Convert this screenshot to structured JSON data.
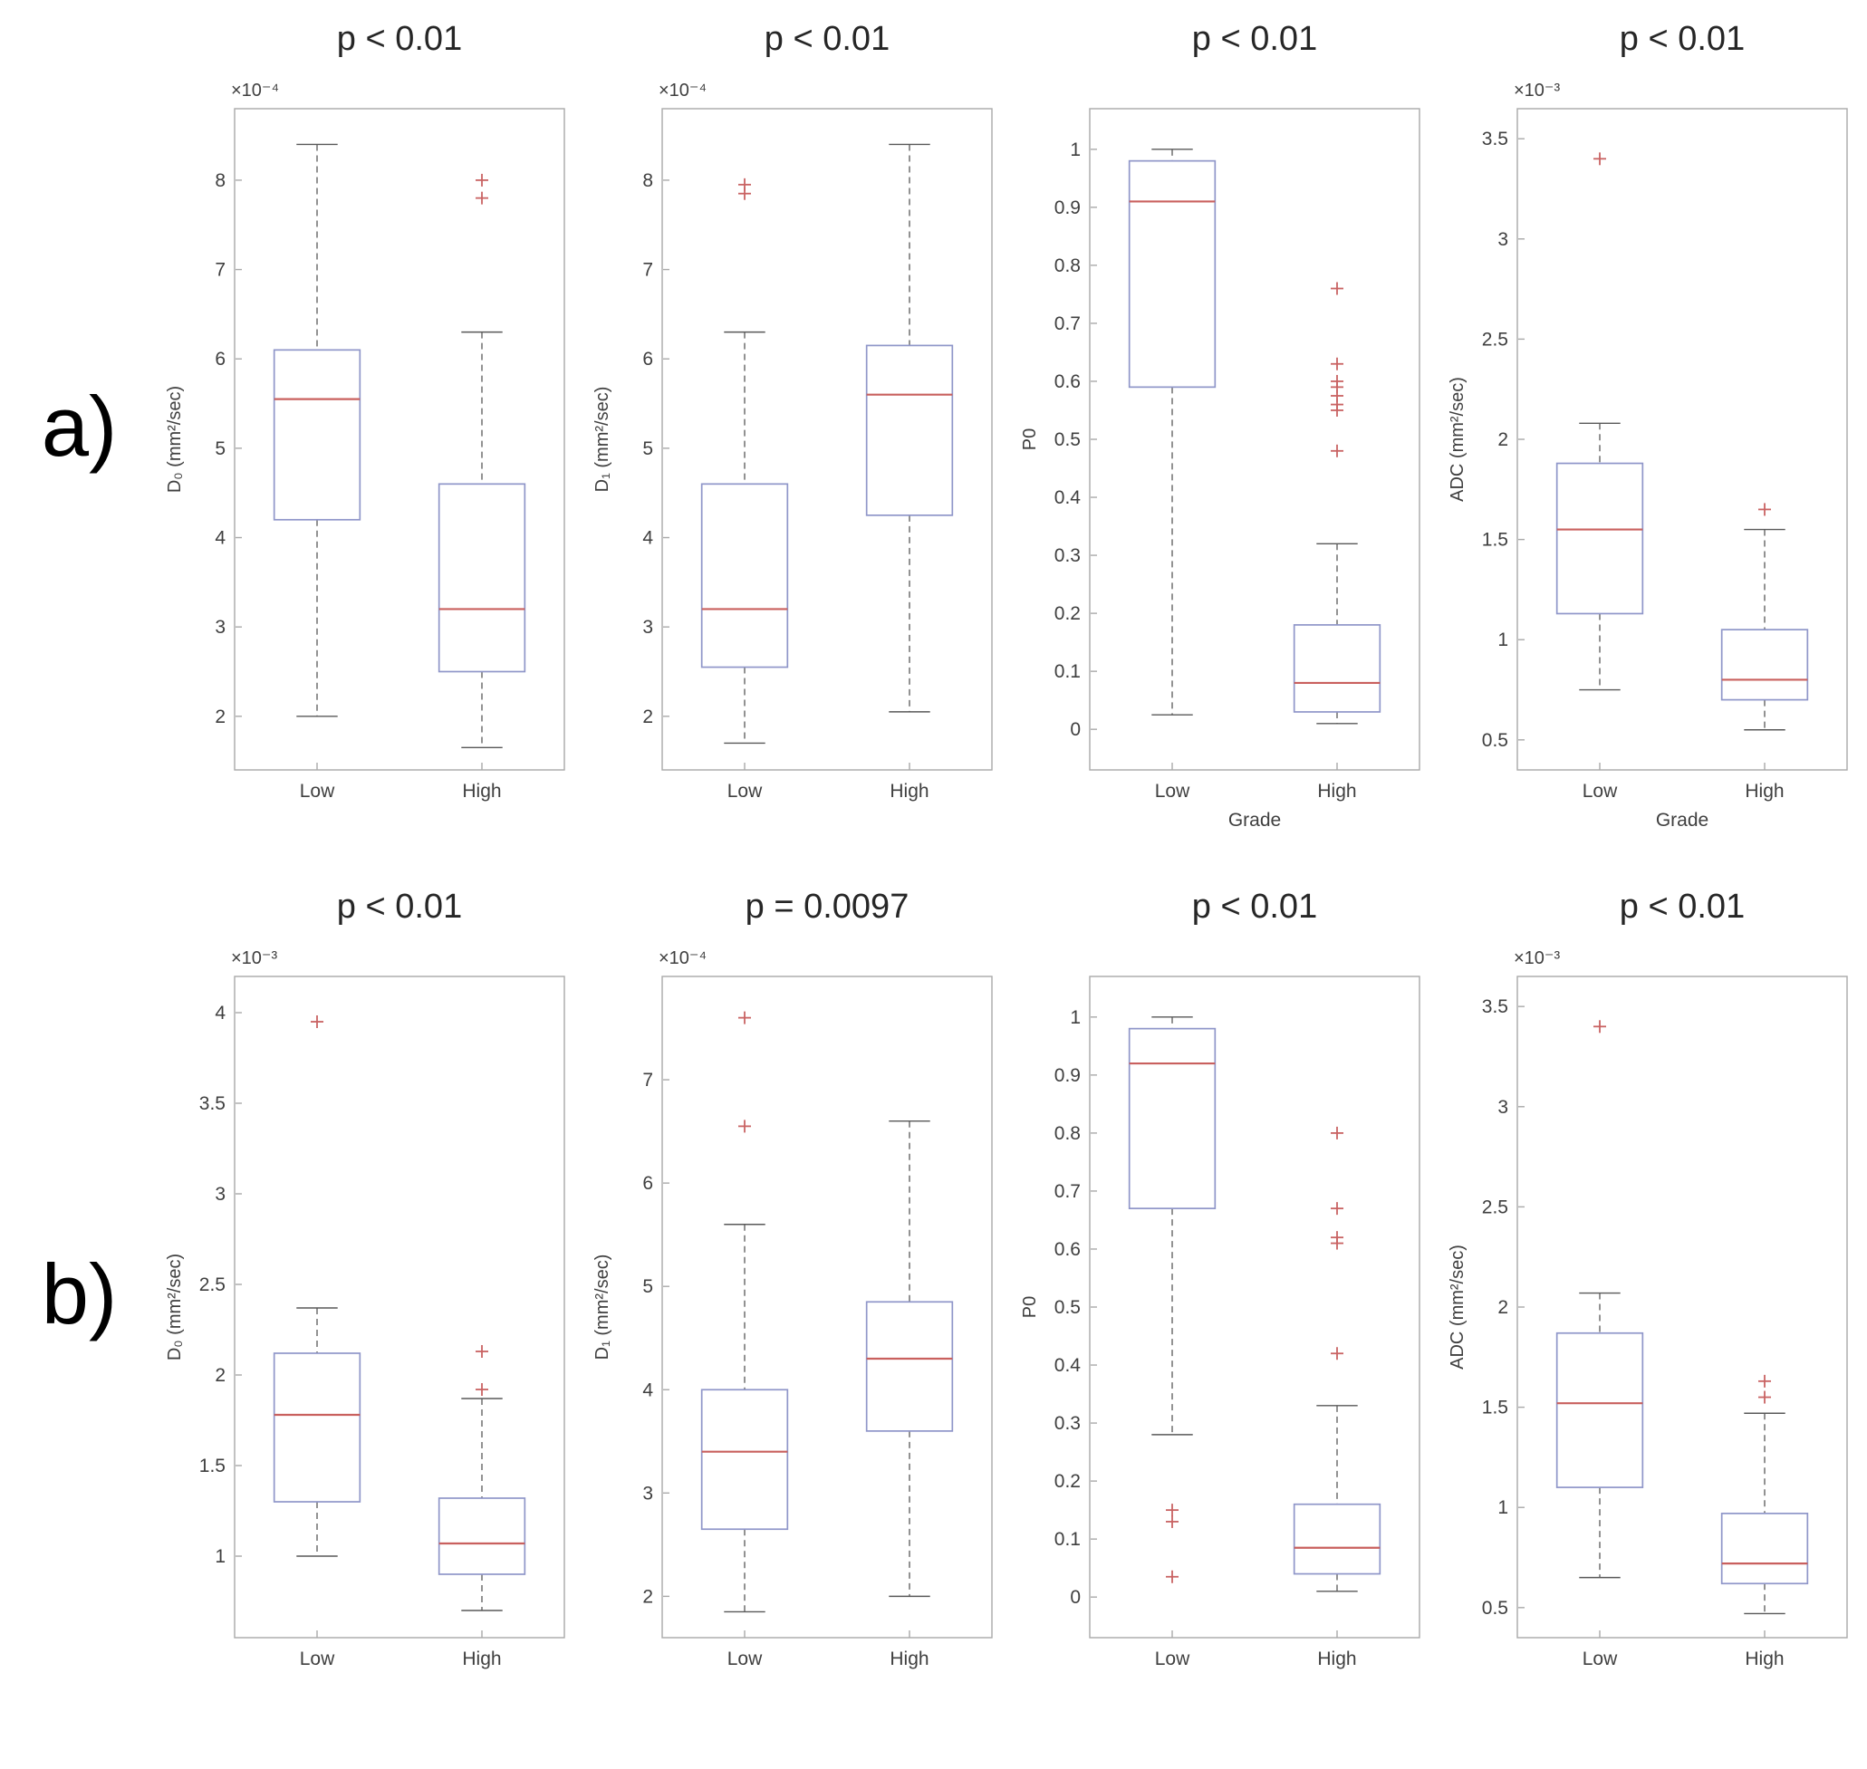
{
  "colors": {
    "box": "#8f96c9",
    "median": "#c9605e",
    "whisker": "#585858",
    "outlier": "#c96363",
    "axis_frame": "#a9a9a9",
    "tick_text": "#3f3f3f",
    "title_text": "#262626"
  },
  "chart_data": {
    "type": "box",
    "rows": [
      {
        "row_label": "a)",
        "charts": [
          {
            "title": "p < 0.01",
            "exponent": "×10⁻⁴",
            "ylabel": "D₀ (mm²/sec)",
            "xlabel": "",
            "ylim": [
              1.4,
              8.8
            ],
            "yticks": [
              2,
              3,
              4,
              5,
              6,
              7,
              8
            ],
            "categories": [
              "Low",
              "High"
            ],
            "groups": [
              {
                "label": "Low",
                "whislo": 2.0,
                "q1": 4.2,
                "med": 5.55,
                "q3": 6.1,
                "whishi": 8.4,
                "outliers": []
              },
              {
                "label": "High",
                "whislo": 1.65,
                "q1": 2.5,
                "med": 3.2,
                "q3": 4.6,
                "whishi": 6.3,
                "outliers": [
                  7.8,
                  8.0
                ]
              }
            ]
          },
          {
            "title": "p < 0.01",
            "exponent": "×10⁻⁴",
            "ylabel": "D₁ (mm²/sec)",
            "xlabel": "",
            "ylim": [
              1.4,
              8.8
            ],
            "yticks": [
              2,
              3,
              4,
              5,
              6,
              7,
              8
            ],
            "categories": [
              "Low",
              "High"
            ],
            "groups": [
              {
                "label": "Low",
                "whislo": 1.7,
                "q1": 2.55,
                "med": 3.2,
                "q3": 4.6,
                "whishi": 6.3,
                "outliers": [
                  7.85,
                  7.95
                ]
              },
              {
                "label": "High",
                "whislo": 2.05,
                "q1": 4.25,
                "med": 5.6,
                "q3": 6.15,
                "whishi": 8.4,
                "outliers": []
              }
            ]
          },
          {
            "title": "p < 0.01",
            "exponent": "",
            "ylabel": "P0",
            "xlabel": "Grade",
            "ylim": [
              -0.07,
              1.07
            ],
            "yticks": [
              0,
              0.1,
              0.2,
              0.3,
              0.4,
              0.5,
              0.6,
              0.7,
              0.8,
              0.9,
              1
            ],
            "categories": [
              "Low",
              "High"
            ],
            "groups": [
              {
                "label": "Low",
                "whislo": 0.025,
                "q1": 0.59,
                "med": 0.91,
                "q3": 0.98,
                "whishi": 1.0,
                "outliers": []
              },
              {
                "label": "High",
                "whislo": 0.01,
                "q1": 0.03,
                "med": 0.08,
                "q3": 0.18,
                "whishi": 0.32,
                "outliers": [
                  0.48,
                  0.55,
                  0.56,
                  0.575,
                  0.59,
                  0.6,
                  0.63,
                  0.76
                ]
              }
            ]
          },
          {
            "title": "p < 0.01",
            "exponent": "×10⁻³",
            "ylabel": "ADC (mm²/sec)",
            "xlabel": "Grade",
            "ylim": [
              0.35,
              3.65
            ],
            "yticks": [
              0.5,
              1,
              1.5,
              2,
              2.5,
              3,
              3.5
            ],
            "categories": [
              "Low",
              "High"
            ],
            "groups": [
              {
                "label": "Low",
                "whislo": 0.75,
                "q1": 1.13,
                "med": 1.55,
                "q3": 1.88,
                "whishi": 2.08,
                "outliers": [
                  3.4
                ]
              },
              {
                "label": "High",
                "whislo": 0.55,
                "q1": 0.7,
                "med": 0.8,
                "q3": 1.05,
                "whishi": 1.55,
                "outliers": [
                  1.65
                ]
              }
            ]
          }
        ]
      },
      {
        "row_label": "b)",
        "charts": [
          {
            "title": "p < 0.01",
            "exponent": "×10⁻³",
            "ylabel": "D₀ (mm²/sec)",
            "xlabel": "",
            "ylim": [
              0.55,
              4.2
            ],
            "yticks": [
              1,
              1.5,
              2,
              2.5,
              3,
              3.5,
              4
            ],
            "categories": [
              "Low",
              "High"
            ],
            "groups": [
              {
                "label": "Low",
                "whislo": 1.0,
                "q1": 1.3,
                "med": 1.78,
                "q3": 2.12,
                "whishi": 2.37,
                "outliers": [
                  3.95
                ]
              },
              {
                "label": "High",
                "whislo": 0.7,
                "q1": 0.9,
                "med": 1.07,
                "q3": 1.32,
                "whishi": 1.87,
                "outliers": [
                  1.92,
                  2.13
                ]
              }
            ]
          },
          {
            "title": "p = 0.0097",
            "exponent": "×10⁻⁴",
            "ylabel": "D₁ (mm²/sec)",
            "xlabel": "",
            "ylim": [
              1.6,
              8.0
            ],
            "yticks": [
              2,
              3,
              4,
              5,
              6,
              7
            ],
            "categories": [
              "Low",
              "High"
            ],
            "groups": [
              {
                "label": "Low",
                "whislo": 1.85,
                "q1": 2.65,
                "med": 3.4,
                "q3": 4.0,
                "whishi": 5.6,
                "outliers": [
                  6.55,
                  7.6
                ]
              },
              {
                "label": "High",
                "whislo": 2.0,
                "q1": 3.6,
                "med": 4.3,
                "q3": 4.85,
                "whishi": 6.6,
                "outliers": []
              }
            ]
          },
          {
            "title": "p < 0.01",
            "exponent": "",
            "ylabel": "P0",
            "xlabel": "",
            "ylim": [
              -0.07,
              1.07
            ],
            "yticks": [
              0,
              0.1,
              0.2,
              0.3,
              0.4,
              0.5,
              0.6,
              0.7,
              0.8,
              0.9,
              1
            ],
            "categories": [
              "Low",
              "High"
            ],
            "groups": [
              {
                "label": "Low",
                "whislo": 0.28,
                "q1": 0.67,
                "med": 0.92,
                "q3": 0.98,
                "whishi": 1.0,
                "outliers": [
                  0.035,
                  0.13,
                  0.15
                ]
              },
              {
                "label": "High",
                "whislo": 0.01,
                "q1": 0.04,
                "med": 0.085,
                "q3": 0.16,
                "whishi": 0.33,
                "outliers": [
                  0.42,
                  0.61,
                  0.62,
                  0.67,
                  0.8
                ]
              }
            ]
          },
          {
            "title": "p < 0.01",
            "exponent": "×10⁻³",
            "ylabel": "ADC (mm²/sec)",
            "xlabel": "",
            "ylim": [
              0.35,
              3.65
            ],
            "yticks": [
              0.5,
              1,
              1.5,
              2,
              2.5,
              3,
              3.5
            ],
            "categories": [
              "Low",
              "High"
            ],
            "groups": [
              {
                "label": "Low",
                "whislo": 0.65,
                "q1": 1.1,
                "med": 1.52,
                "q3": 1.87,
                "whishi": 2.07,
                "outliers": [
                  3.4
                ]
              },
              {
                "label": "High",
                "whislo": 0.47,
                "q1": 0.62,
                "med": 0.72,
                "q3": 0.97,
                "whishi": 1.47,
                "outliers": [
                  1.55,
                  1.63
                ]
              }
            ]
          }
        ]
      }
    ]
  }
}
